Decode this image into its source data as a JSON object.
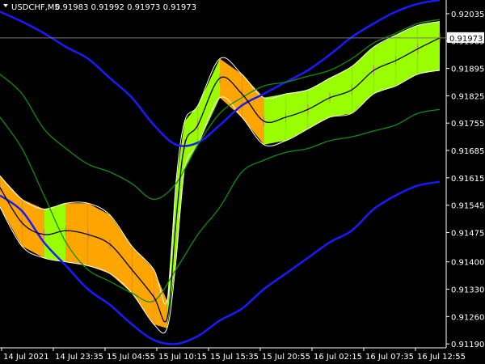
{
  "header": {
    "symbol_label": "USDCHF,M5",
    "ohlc_label": "0.91983 0.91992 0.91973 0.91973"
  },
  "current_price_label": "0.91973",
  "colors": {
    "background": "#000000",
    "blue_band": "#1a1aff",
    "green_band": "#0f8f0f",
    "band_up": "#99ff00",
    "band_down": "#ffa500",
    "price_line": "#000000",
    "wick": "#c07080",
    "axis_text": "#ffffff",
    "price_tag_bg": "#ffffff",
    "price_tag_text": "#000000"
  },
  "chart_data": {
    "type": "line",
    "symbol": "USDCHF",
    "timeframe": "M5",
    "ylim": [
      0.9118,
      0.9207
    ],
    "y_ticks": [
      0.9119,
      0.9126,
      0.9133,
      0.914,
      0.91475,
      0.91545,
      0.91615,
      0.91685,
      0.91755,
      0.91825,
      0.91895,
      0.91965,
      0.92035
    ],
    "y_tick_labels": [
      "0.91190",
      "0.91260",
      "0.91330",
      "0.91400",
      "0.91475",
      "0.91545",
      "0.91615",
      "0.91685",
      "0.91755",
      "0.91825",
      "0.91895",
      "0.91965",
      "0.92035"
    ],
    "x_tick_labels": [
      "14 Jul 2021",
      "14 Jul 23:35",
      "15 Jul 04:55",
      "15 Jul 10:15",
      "15 Jul 15:35",
      "15 Jul 20:55",
      "16 Jul 02:15",
      "16 Jul 07:35",
      "16 Jul 12:55"
    ],
    "current_price": 0.91973,
    "series": [
      {
        "key": "outer_upper",
        "x": [
          0,
          0.05,
          0.1,
          0.15,
          0.2,
          0.25,
          0.3,
          0.35,
          0.4,
          0.45,
          0.5,
          0.55,
          0.6,
          0.65,
          0.7,
          0.75,
          0.8,
          0.85,
          0.9,
          0.95,
          1
        ],
        "y": [
          0.9204,
          0.92015,
          0.91985,
          0.9195,
          0.9192,
          0.9187,
          0.9182,
          0.9175,
          0.917,
          0.91705,
          0.9175,
          0.918,
          0.9183,
          0.9186,
          0.9189,
          0.9193,
          0.91975,
          0.9201,
          0.9204,
          0.9206,
          0.9207
        ]
      },
      {
        "key": "mid_upper",
        "x": [
          0,
          0.05,
          0.1,
          0.15,
          0.2,
          0.25,
          0.3,
          0.35,
          0.4,
          0.45,
          0.5,
          0.55,
          0.6,
          0.65,
          0.7,
          0.75,
          0.8,
          0.85,
          0.9,
          0.95,
          1
        ],
        "y": [
          0.9188,
          0.9183,
          0.9174,
          0.9169,
          0.9165,
          0.9163,
          0.916,
          0.9156,
          0.916,
          0.917,
          0.9178,
          0.9182,
          0.9185,
          0.9186,
          0.91875,
          0.9189,
          0.9192,
          0.9196,
          0.91985,
          0.9201,
          0.9202
        ]
      },
      {
        "key": "mid_lower",
        "x": [
          0,
          0.05,
          0.1,
          0.15,
          0.2,
          0.25,
          0.3,
          0.35,
          0.4,
          0.45,
          0.5,
          0.55,
          0.6,
          0.65,
          0.7,
          0.75,
          0.8,
          0.85,
          0.9,
          0.95,
          1
        ],
        "y": [
          0.9177,
          0.9169,
          0.9157,
          0.9145,
          0.9138,
          0.9135,
          0.9132,
          0.913,
          0.9138,
          0.9147,
          0.9154,
          0.9163,
          0.9166,
          0.9168,
          0.9169,
          0.9171,
          0.9172,
          0.91735,
          0.9175,
          0.9178,
          0.9179
        ]
      },
      {
        "key": "outer_lower",
        "x": [
          0,
          0.05,
          0.1,
          0.15,
          0.2,
          0.25,
          0.3,
          0.35,
          0.4,
          0.45,
          0.5,
          0.55,
          0.6,
          0.65,
          0.7,
          0.75,
          0.8,
          0.85,
          0.9,
          0.95,
          1
        ],
        "y": [
          0.9157,
          0.9153,
          0.9145,
          0.9139,
          0.9133,
          0.9129,
          0.9124,
          0.912,
          0.9119,
          0.9121,
          0.9125,
          0.9128,
          0.9133,
          0.9137,
          0.9141,
          0.9145,
          0.9148,
          0.91535,
          0.9157,
          0.91595,
          0.91605
        ]
      },
      {
        "key": "ribbon_upper",
        "x": [
          0,
          0.05,
          0.1,
          0.15,
          0.2,
          0.25,
          0.3,
          0.35,
          0.38,
          0.4,
          0.42,
          0.45,
          0.5,
          0.55,
          0.6,
          0.65,
          0.7,
          0.75,
          0.8,
          0.85,
          0.9,
          0.95,
          1
        ],
        "y": [
          0.9162,
          0.9156,
          0.91535,
          0.9155,
          0.9155,
          0.9152,
          0.9144,
          0.9138,
          0.913,
          0.916,
          0.9176,
          0.918,
          0.9192,
          0.9188,
          0.9182,
          0.9183,
          0.9184,
          0.9187,
          0.919,
          0.9195,
          0.9198,
          0.92005,
          0.92015
        ]
      },
      {
        "key": "ribbon_lower",
        "x": [
          0,
          0.05,
          0.1,
          0.15,
          0.2,
          0.25,
          0.3,
          0.35,
          0.38,
          0.4,
          0.42,
          0.45,
          0.5,
          0.55,
          0.6,
          0.65,
          0.7,
          0.75,
          0.8,
          0.85,
          0.9,
          0.95,
          1
        ],
        "y": [
          0.9154,
          0.9144,
          0.9141,
          0.914,
          0.9139,
          0.9137,
          0.9132,
          0.9124,
          0.9123,
          0.914,
          0.9164,
          0.917,
          0.9182,
          0.9177,
          0.917,
          0.9171,
          0.9174,
          0.9177,
          0.9178,
          0.9183,
          0.9185,
          0.9188,
          0.9189
        ]
      },
      {
        "key": "price",
        "x": [
          0,
          0.05,
          0.1,
          0.15,
          0.2,
          0.25,
          0.3,
          0.35,
          0.38,
          0.4,
          0.42,
          0.45,
          0.5,
          0.55,
          0.6,
          0.65,
          0.7,
          0.75,
          0.8,
          0.85,
          0.9,
          0.95,
          1
        ],
        "y": [
          0.9159,
          0.915,
          0.9147,
          0.9148,
          0.9147,
          0.91445,
          0.9138,
          0.9131,
          0.91255,
          0.915,
          0.917,
          0.9175,
          0.9187,
          0.9183,
          0.9176,
          0.9177,
          0.9179,
          0.9182,
          0.9184,
          0.9189,
          0.91915,
          0.91945,
          0.91973
        ]
      }
    ]
  }
}
